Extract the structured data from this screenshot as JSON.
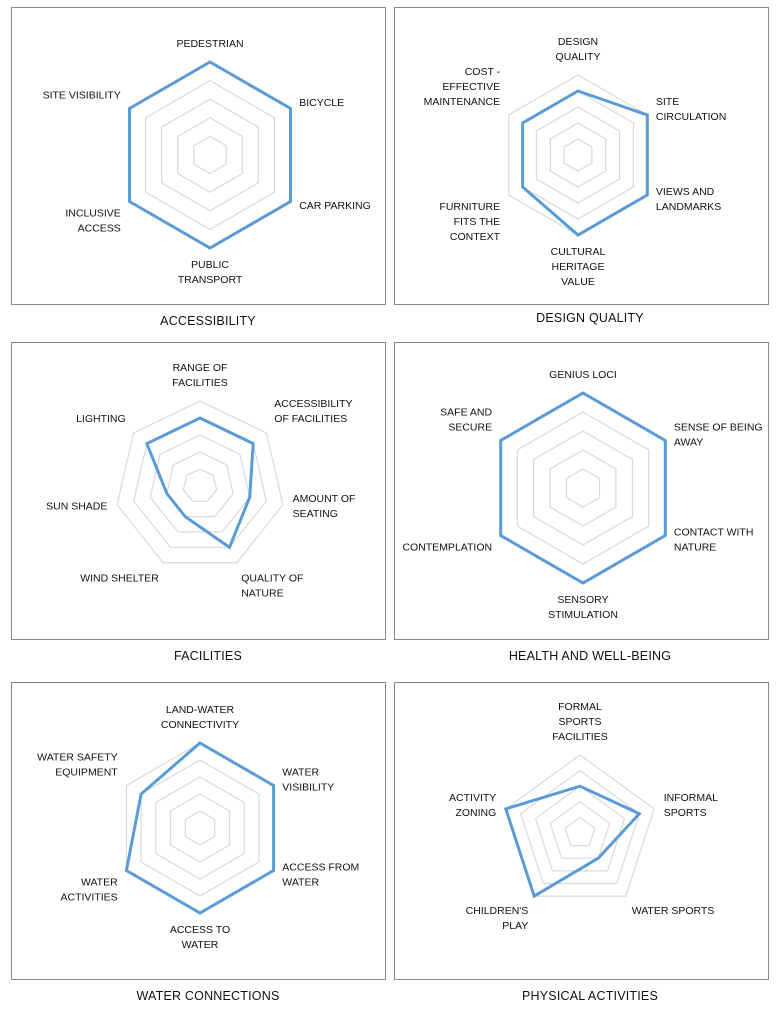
{
  "chart_data": [
    {
      "type": "radar",
      "title": "ACCESSIBILITY",
      "axes": [
        [
          "PEDESTRIAN"
        ],
        [
          "BICYCLE"
        ],
        [
          "CAR PARKING"
        ],
        [
          "PUBLIC",
          "TRANSPORT"
        ],
        [
          "INCLUSIVE",
          "ACCESS"
        ],
        [
          "SITE VISIBILITY"
        ]
      ],
      "values": [
        5,
        5,
        5,
        5,
        5,
        5
      ],
      "scale_max": 5,
      "grid_rings": 5,
      "series_color": "#5B9BD5",
      "grid_color": "#d9d9d9"
    },
    {
      "type": "radar",
      "title": "DESIGN QUALITY",
      "axes": [
        [
          "DESIGN",
          "QUALITY"
        ],
        [
          "SITE",
          "CIRCULATION"
        ],
        [
          "VIEWS AND",
          "LANDMARKS"
        ],
        [
          "CULTURAL",
          "HERITAGE",
          "VALUE"
        ],
        [
          "FURNITURE",
          "FITS THE",
          "CONTEXT"
        ],
        [
          "COST -",
          "EFFECTIVE",
          "MAINTENANCE"
        ]
      ],
      "values": [
        4,
        5,
        5,
        5,
        4,
        4
      ],
      "scale_max": 5,
      "grid_rings": 5,
      "series_color": "#5B9BD5",
      "grid_color": "#d9d9d9"
    },
    {
      "type": "radar",
      "title": "FACILITIES",
      "axes": [
        [
          "RANGE OF",
          "FACILITIES"
        ],
        [
          "ACCESSIBILITY",
          "OF FACILITIES"
        ],
        [
          "AMOUNT OF",
          "SEATING"
        ],
        [
          "QUALITY OF",
          "NATURE"
        ],
        [
          "WIND SHELTER"
        ],
        [
          "SUN SHADE"
        ],
        [
          "LIGHTING"
        ]
      ],
      "values": [
        4,
        4,
        3,
        4,
        2,
        2,
        4
      ],
      "scale_max": 5,
      "grid_rings": 5,
      "series_color": "#5B9BD5",
      "grid_color": "#d9d9d9"
    },
    {
      "type": "radar",
      "title": "HEALTH AND WELL-BEING",
      "axes": [
        [
          "GENIUS LOCI"
        ],
        [
          "SENSE OF BEING",
          "AWAY"
        ],
        [
          "CONTACT WITH",
          "NATURE"
        ],
        [
          "SENSORY",
          "STIMULATION"
        ],
        [
          "CONTEMPLATION"
        ],
        [
          "SAFE AND",
          "SECURE"
        ]
      ],
      "values": [
        5,
        5,
        5,
        5,
        5,
        5
      ],
      "scale_max": 5,
      "grid_rings": 5,
      "series_color": "#5B9BD5",
      "grid_color": "#d9d9d9"
    },
    {
      "type": "radar",
      "title": "WATER CONNECTIONS",
      "axes": [
        [
          "LAND-WATER",
          "CONNECTIVITY"
        ],
        [
          "WATER",
          "VISIBILITY"
        ],
        [
          "ACCESS FROM",
          "WATER"
        ],
        [
          "ACCESS TO",
          "WATER"
        ],
        [
          "WATER",
          "ACTIVITIES"
        ],
        [
          "WATER SAFETY",
          "EQUIPMENT"
        ]
      ],
      "values": [
        5,
        5,
        5,
        5,
        5,
        4
      ],
      "scale_max": 5,
      "grid_rings": 5,
      "series_color": "#5B9BD5",
      "grid_color": "#d9d9d9"
    },
    {
      "type": "radar",
      "title": "PHYSICAL ACTIVITIES",
      "axes": [
        [
          "FORMAL",
          "SPORTS",
          "FACILITIES"
        ],
        [
          "INFORMAL",
          "SPORTS"
        ],
        [
          "WATER SPORTS"
        ],
        [
          "CHILDREN'S",
          "PLAY"
        ],
        [
          "ACTIVITY",
          "ZONING"
        ]
      ],
      "values": [
        3,
        4,
        2,
        5,
        5
      ],
      "scale_max": 5,
      "grid_rings": 5,
      "series_color": "#5B9BD5",
      "grid_color": "#d9d9d9"
    }
  ]
}
